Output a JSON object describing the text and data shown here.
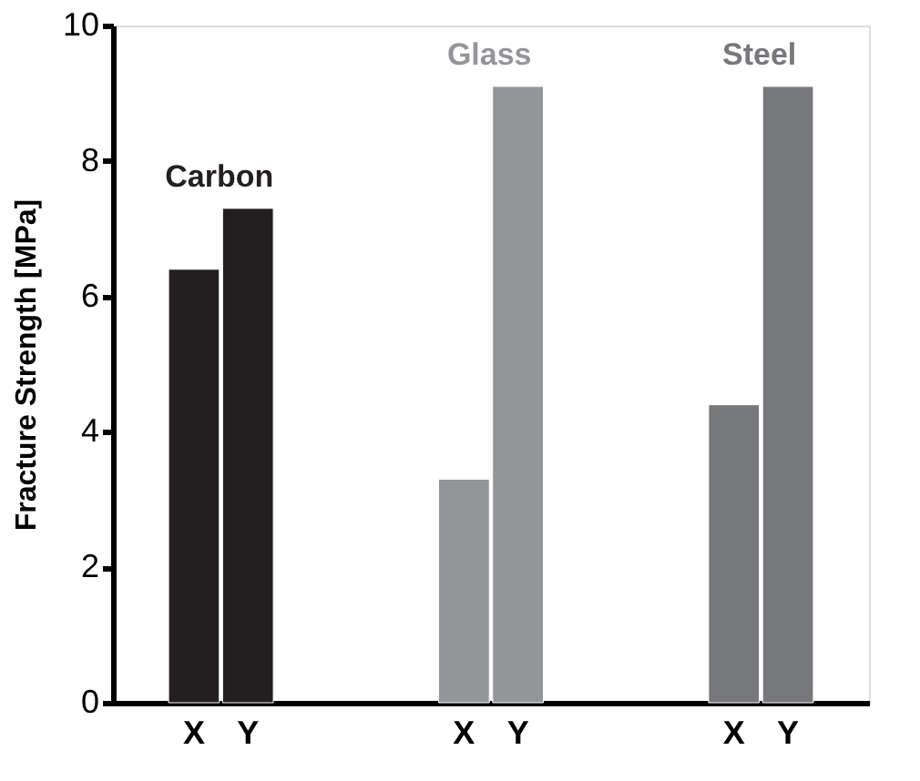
{
  "chart_data": {
    "type": "bar",
    "ylabel": "Fracture Strength [MPa]",
    "categories": [
      null,
      "X",
      "Y",
      null,
      null,
      null,
      "X",
      "Y",
      null,
      null,
      null,
      "X",
      "Y",
      null
    ],
    "series": [
      {
        "name": "Carbon",
        "color": "#231f20",
        "values": [
          null,
          6.4,
          7.3,
          null,
          null,
          null,
          null,
          null,
          null,
          null,
          null,
          null,
          null,
          null
        ]
      },
      {
        "name": "Glass",
        "color": "#939598",
        "values": [
          null,
          null,
          null,
          null,
          null,
          null,
          3.3,
          9.1,
          null,
          null,
          null,
          null,
          null,
          null
        ]
      },
      {
        "name": "Steel",
        "color": "#77787b",
        "values": [
          null,
          null,
          null,
          null,
          null,
          null,
          null,
          null,
          null,
          null,
          null,
          4.4,
          9.1,
          null
        ]
      }
    ],
    "ylim": [
      0,
      10
    ],
    "yticks": [
      0,
      2,
      4,
      6,
      8,
      10
    ],
    "grid": false
  }
}
